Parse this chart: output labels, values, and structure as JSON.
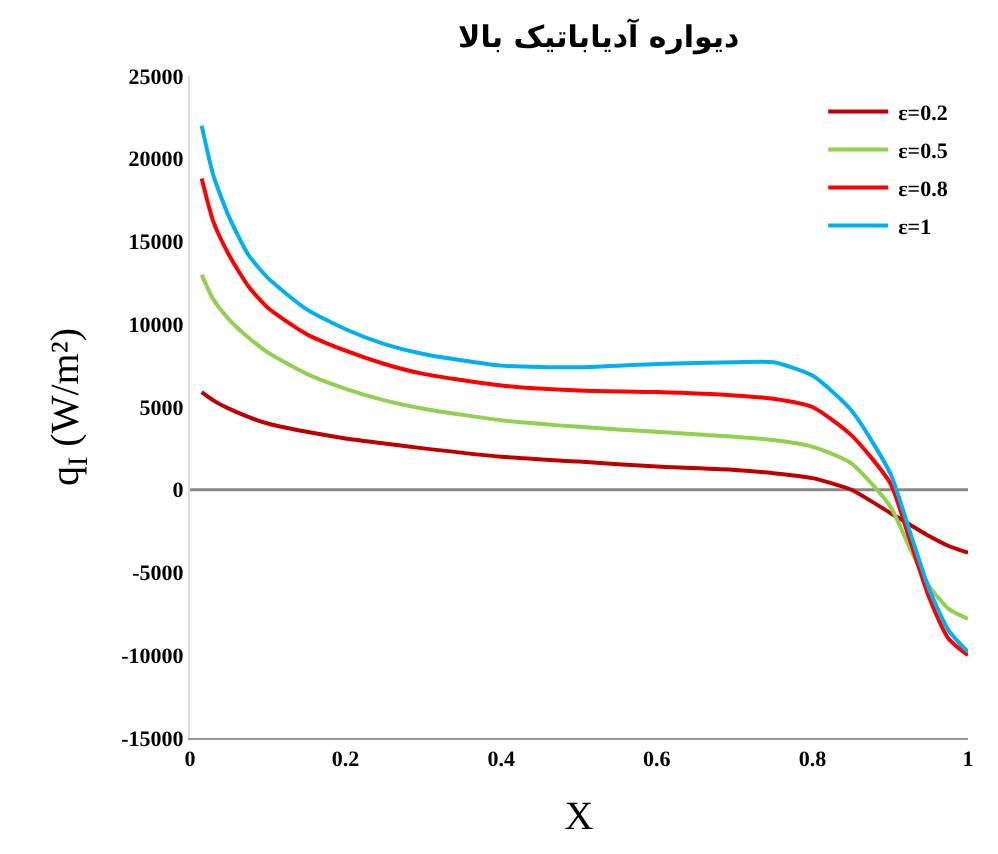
{
  "chart_data": {
    "type": "line",
    "title": "دیواره آدیاباتیک بالا",
    "xlabel": "X",
    "ylabel": "q$_{I}$ (W/m²)",
    "x": [
      0.015,
      0.03,
      0.05,
      0.075,
      0.1,
      0.15,
      0.2,
      0.25,
      0.3,
      0.4,
      0.5,
      0.6,
      0.7,
      0.75,
      0.8,
      0.85,
      0.9,
      0.925,
      0.95,
      0.975,
      1.0
    ],
    "series": [
      {
        "name": "ε=0.2",
        "color": "#c00000",
        "values": [
          5900,
          5400,
          4900,
          4400,
          4000,
          3500,
          3100,
          2800,
          2500,
          2000,
          1700,
          1400,
          1200,
          1000,
          700,
          0,
          -1400,
          -2100,
          -2800,
          -3400,
          -3800
        ]
      },
      {
        "name": "ε=0.5",
        "color": "#92d050",
        "values": [
          13000,
          11500,
          10300,
          9200,
          8300,
          7000,
          6100,
          5400,
          4900,
          4200,
          3800,
          3500,
          3200,
          3000,
          2600,
          1600,
          -1000,
          -3500,
          -5800,
          -7200,
          -7800
        ]
      },
      {
        "name": "ε=0.8",
        "color": "#ff0000",
        "values": [
          18800,
          16200,
          14200,
          12300,
          11000,
          9400,
          8400,
          7600,
          7000,
          6300,
          6000,
          5900,
          5700,
          5500,
          5000,
          3300,
          400,
          -3000,
          -6500,
          -9000,
          -10000
        ]
      },
      {
        "name": "ε=1",
        "color": "#00b0f0",
        "values": [
          22000,
          19000,
          16500,
          14200,
          12800,
          10900,
          9700,
          8800,
          8200,
          7500,
          7400,
          7600,
          7700,
          7700,
          6900,
          4800,
          1000,
          -2500,
          -6000,
          -8500,
          -9800
        ]
      }
    ],
    "xlim": [
      0,
      1
    ],
    "xticks": [
      0,
      0.2,
      0.4,
      0.6,
      0.8,
      1
    ],
    "ylim": [
      -15000,
      25000
    ],
    "yticks": [
      -15000,
      -10000,
      -5000,
      0,
      5000,
      10000,
      15000,
      20000,
      25000
    ],
    "ref_lines": [
      {
        "axis": "y",
        "value": 0,
        "color": "#888888"
      }
    ],
    "grid": false,
    "legend": "top right",
    "marker": "none",
    "line_style": "solid"
  }
}
